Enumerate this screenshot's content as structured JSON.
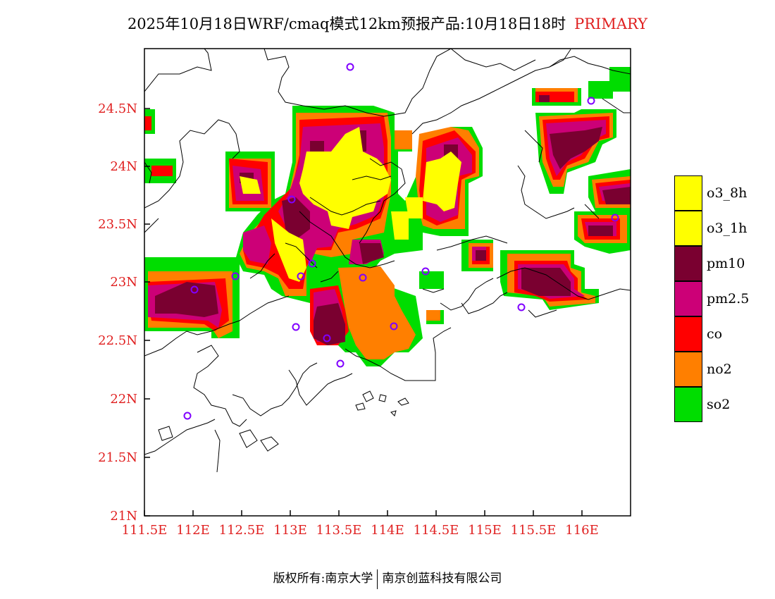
{
  "title": {
    "main": "2025年10月18日WRF/cmaq模式12km预报产品:10月18日18时",
    "tag": "PRIMARY",
    "tag_color": "#e02020"
  },
  "axes": {
    "y_ticks": [
      "24.5N",
      "24N",
      "23.5N",
      "23N",
      "22.5N",
      "22N",
      "21.5N",
      "21N"
    ],
    "x_ticks": [
      "111.5E",
      "112E",
      "112.5E",
      "113E",
      "113.5E",
      "114E",
      "114.5E",
      "115E",
      "115.5E",
      "116E"
    ],
    "tick_color": "#e02020"
  },
  "legend": {
    "items": [
      {
        "label": "o3_8h",
        "color": "#ffff00"
      },
      {
        "label": "o3_1h",
        "color": "#ffff00"
      },
      {
        "label": "pm10",
        "color": "#7a0030"
      },
      {
        "label": "pm2.5",
        "color": "#cc0077"
      },
      {
        "label": "co",
        "color": "#ff0000"
      },
      {
        "label": "no2",
        "color": "#ff7f00"
      },
      {
        "label": "so2",
        "color": "#00dd00"
      }
    ]
  },
  "footer": {
    "left": "版权所有:南京大学",
    "right": "南京创蓝科技有限公司"
  }
}
